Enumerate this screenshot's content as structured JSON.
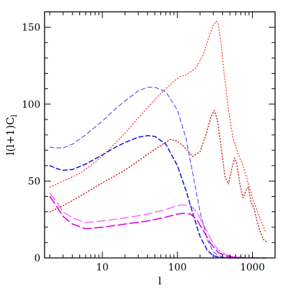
{
  "chart_data": {
    "type": "line",
    "title": "",
    "xlabel": "l",
    "ylabel": "l(l+1)C_l",
    "ylabel_main": "l(l+1)C",
    "ylabel_sub": "l",
    "xscale": "log",
    "xlim": [
      1.7,
      2000
    ],
    "ylim": [
      0,
      160
    ],
    "x_ticks": [
      10,
      100,
      1000
    ],
    "x_tick_labels": [
      "10",
      "100",
      "1000"
    ],
    "y_ticks": [
      0,
      50,
      100,
      150
    ],
    "y_tick_labels": [
      "0",
      "50",
      "100",
      "150"
    ],
    "grid": false,
    "legend": "none",
    "series": [
      {
        "color": "#ff2a2a",
        "dash": "dot",
        "width": 1.2,
        "x": [
          2,
          3,
          5,
          8,
          12,
          20,
          30,
          50,
          70,
          90,
          110,
          130,
          150,
          180,
          220,
          260,
          300,
          330,
          350,
          380,
          420,
          480,
          550,
          650,
          750,
          850,
          1000,
          1150,
          1300,
          1500
        ],
        "y": [
          46,
          50,
          55,
          62,
          70,
          81,
          91,
          103,
          110,
          115,
          118,
          119,
          121,
          124,
          132,
          143,
          151,
          154,
          152,
          140,
          120,
          96,
          78,
          67,
          60,
          51,
          39,
          31,
          24,
          17
        ]
      },
      {
        "color": "#cc2020",
        "dash": "dot",
        "width": 1.4,
        "x": [
          2,
          3,
          5,
          8,
          12,
          20,
          30,
          45,
          60,
          80,
          100,
          130,
          160,
          200,
          240,
          280,
          310,
          340,
          380,
          430,
          480,
          530,
          580,
          620,
          680,
          750,
          820,
          880,
          950,
          1050,
          1150,
          1250,
          1400,
          1600
        ],
        "y": [
          30,
          34,
          40,
          46,
          51,
          57,
          63,
          69,
          73,
          77,
          76,
          71,
          66,
          69,
          80,
          92,
          96,
          90,
          73,
          53,
          48,
          58,
          65,
          61,
          48,
          39,
          44,
          46,
          37,
          32,
          24,
          18,
          12,
          10
        ]
      },
      {
        "color": "#3030ff",
        "dash": "dash",
        "width": 1.0,
        "x": [
          2,
          2.5,
          3,
          4,
          6,
          10,
          15,
          20,
          30,
          40,
          50,
          70,
          100,
          130,
          160,
          200,
          250,
          300,
          350,
          400,
          500,
          600,
          800
        ],
        "y": [
          72,
          71.5,
          71.5,
          74,
          80,
          89,
          97,
          102,
          108.5,
          111,
          111,
          108,
          96,
          78,
          55,
          30,
          12,
          4,
          1.5,
          0.6,
          0.2,
          0.05,
          0
        ]
      },
      {
        "color": "#1a1ad8",
        "dash": "dash",
        "width": 1.6,
        "x": [
          2,
          2.5,
          3,
          4,
          6,
          10,
          15,
          20,
          30,
          40,
          50,
          70,
          100,
          130,
          160,
          200,
          250,
          300,
          350,
          400,
          500,
          600,
          800
        ],
        "y": [
          60,
          58,
          57,
          57.5,
          61,
          67,
          72,
          75,
          78.5,
          79.5,
          79,
          74,
          60,
          44,
          29,
          14,
          5,
          1.5,
          0.5,
          0.2,
          0.05,
          0,
          0
        ]
      },
      {
        "color": "#ff44ff",
        "dash": "longdash",
        "width": 1.2,
        "x": [
          2,
          2.5,
          3,
          4,
          6,
          10,
          20,
          40,
          70,
          100,
          120,
          150,
          180,
          220,
          280,
          350,
          450,
          600,
          800,
          1000,
          1500
        ],
        "y": [
          42,
          36,
          30,
          26,
          23,
          24,
          26,
          28.5,
          31.5,
          34,
          34.5,
          34,
          30,
          22,
          12,
          5,
          2,
          0.5,
          0.2,
          0.1,
          0
        ]
      },
      {
        "color": "#dd00dd",
        "dash": "longdash",
        "width": 1.6,
        "x": [
          2,
          2.5,
          3,
          4,
          6,
          10,
          20,
          40,
          70,
          100,
          120,
          150,
          180,
          220,
          280,
          350,
          450,
          600,
          800,
          1000,
          1500
        ],
        "y": [
          40,
          33,
          27,
          22,
          19,
          20,
          22,
          24,
          26.5,
          28.5,
          29,
          28.5,
          25,
          18,
          9,
          3.5,
          1.2,
          0.3,
          0.1,
          0,
          0
        ]
      }
    ]
  }
}
